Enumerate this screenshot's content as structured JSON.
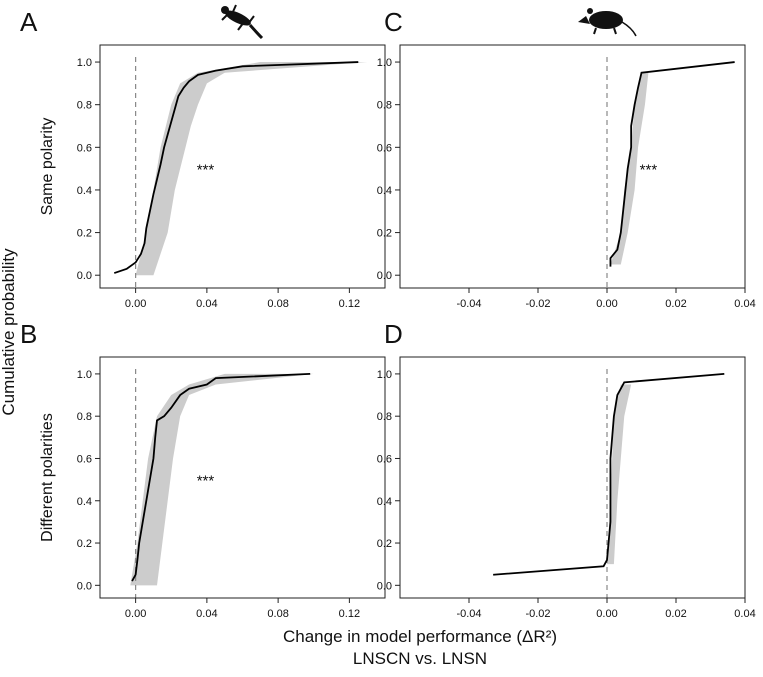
{
  "ylabel": "Cumulative probability",
  "xlabel": "Change in model performance (ΔR²)",
  "xlabel2": "LNSCN vs. LNSN",
  "chart_data": [
    {
      "type": "line",
      "title": "A",
      "ylabel": "Same polarity",
      "annotation": "***",
      "color": "#000000",
      "vline": 0,
      "x": [
        -0.012,
        -0.005,
        0,
        0.003,
        0.005,
        0.006,
        0.008,
        0.01,
        0.012,
        0.014,
        0.016,
        0.018,
        0.02,
        0.022,
        0.024,
        0.027,
        0.03,
        0.035,
        0.045,
        0.06,
        0.125
      ],
      "values": [
        0.01,
        0.03,
        0.06,
        0.1,
        0.15,
        0.22,
        0.3,
        0.38,
        0.45,
        0.52,
        0.6,
        0.66,
        0.72,
        0.78,
        0.84,
        0.88,
        0.91,
        0.94,
        0.96,
        0.98,
        1.0
      ],
      "band": {
        "color": "#cccccc",
        "y": [
          0,
          0.1,
          0.2,
          0.3,
          0.4,
          0.5,
          0.6,
          0.7,
          0.8,
          0.9,
          0.95,
          1.0
        ],
        "x_low": [
          0,
          0.003,
          0.006,
          0.008,
          0.01,
          0.012,
          0.014,
          0.017,
          0.02,
          0.025,
          0.035,
          0.07
        ],
        "x_high": [
          0.01,
          0.014,
          0.018,
          0.02,
          0.022,
          0.025,
          0.028,
          0.031,
          0.035,
          0.04,
          0.05,
          0.13
        ]
      },
      "xlim": [
        -0.02,
        0.14
      ],
      "xticks": [
        {
          "value": 0,
          "label": "0.00"
        },
        0.04,
        0.08,
        0.12
      ],
      "ylim": [
        -0.06,
        1.08
      ],
      "yticks": [
        {
          "value": 0,
          "label": "0.0"
        },
        0.2,
        0.4,
        0.6,
        0.8,
        {
          "value": 1,
          "label": "1.0"
        }
      ]
    },
    {
      "type": "line",
      "title": "B",
      "ylabel": "Different polarities",
      "annotation": "***",
      "color": "#000000",
      "vline": 0,
      "x": [
        -0.002,
        0,
        0.001,
        0.002,
        0.004,
        0.006,
        0.008,
        0.01,
        0.011,
        0.012,
        0.016,
        0.02,
        0.025,
        0.03,
        0.04,
        0.045,
        0.098
      ],
      "values": [
        0.02,
        0.05,
        0.12,
        0.2,
        0.3,
        0.4,
        0.5,
        0.6,
        0.7,
        0.78,
        0.8,
        0.84,
        0.9,
        0.93,
        0.95,
        0.98,
        1.0
      ],
      "band": {
        "color": "#cccccc",
        "y": [
          0,
          0.2,
          0.4,
          0.6,
          0.8,
          0.9,
          0.95,
          1.0
        ],
        "x_low": [
          -0.003,
          0.001,
          0.004,
          0.007,
          0.012,
          0.02,
          0.03,
          0.05
        ],
        "x_high": [
          0.012,
          0.015,
          0.018,
          0.021,
          0.025,
          0.03,
          0.045,
          0.1
        ]
      },
      "xlim": [
        -0.02,
        0.14
      ],
      "xticks": [
        {
          "value": 0,
          "label": "0.00"
        },
        0.04,
        0.08,
        0.12
      ],
      "ylim": [
        -0.06,
        1.08
      ],
      "yticks": [
        {
          "value": 0,
          "label": "0.0"
        },
        0.2,
        0.4,
        0.6,
        0.8,
        {
          "value": 1,
          "label": "1.0"
        }
      ]
    },
    {
      "type": "line",
      "title": "C",
      "annotation": "***",
      "color": "#000000",
      "vline": 0,
      "x": [
        0.001,
        0.001,
        0.003,
        0.004,
        0.005,
        0.006,
        0.007,
        0.007,
        0.008,
        0.009,
        0.01,
        0.037
      ],
      "values": [
        0.04,
        0.08,
        0.12,
        0.2,
        0.35,
        0.5,
        0.6,
        0.7,
        0.8,
        0.88,
        0.95,
        1.0
      ],
      "band": {
        "color": "#cccccc",
        "y": [
          0.05,
          0.2,
          0.4,
          0.6,
          0.8,
          0.95
        ],
        "x_low": [
          0.001,
          0.004,
          0.005,
          0.007,
          0.008,
          0.01
        ],
        "x_high": [
          0.004,
          0.006,
          0.008,
          0.009,
          0.011,
          0.012
        ]
      },
      "xlim": [
        -0.06,
        0.04
      ],
      "xticks": [
        -0.04,
        -0.02,
        {
          "value": 0,
          "label": "0.00"
        },
        0.02,
        0.04
      ],
      "ylim": [
        -0.06,
        1.08
      ],
      "yticks": [
        {
          "value": 0,
          "label": "0.0"
        },
        0.2,
        0.4,
        0.6,
        0.8,
        {
          "value": 1,
          "label": "1.0"
        }
      ]
    },
    {
      "type": "line",
      "title": "D",
      "color": "#000000",
      "vline": 0,
      "x": [
        -0.033,
        -0.001,
        0,
        0.001,
        0.001,
        0.002,
        0.003,
        0.005,
        0.034
      ],
      "values": [
        0.05,
        0.09,
        0.12,
        0.3,
        0.6,
        0.8,
        0.9,
        0.96,
        1.0
      ],
      "band": {
        "color": "#cccccc",
        "y": [
          0.1,
          0.4,
          0.8,
          0.95
        ],
        "x_low": [
          0,
          0.001,
          0.002,
          0.004
        ],
        "x_high": [
          0.002,
          0.003,
          0.005,
          0.007
        ]
      },
      "xlim": [
        -0.06,
        0.04
      ],
      "xticks": [
        -0.04,
        -0.02,
        {
          "value": 0,
          "label": "0.00"
        },
        0.02,
        0.04
      ],
      "ylim": [
        -0.06,
        1.08
      ],
      "yticks": [
        {
          "value": 0,
          "label": "0.0"
        },
        0.2,
        0.4,
        0.6,
        0.8,
        {
          "value": 1,
          "label": "1.0"
        }
      ]
    }
  ]
}
